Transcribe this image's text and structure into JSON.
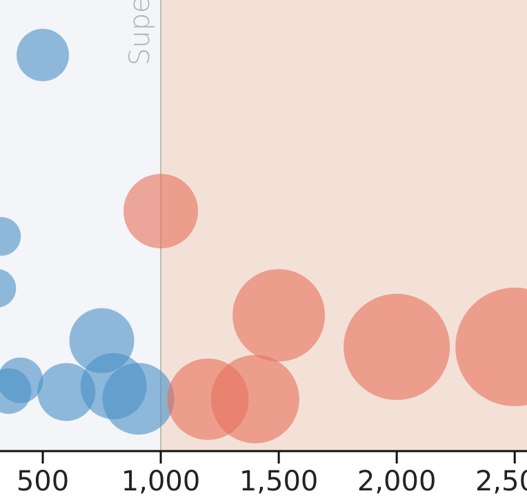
{
  "chart_data": {
    "type": "scatter",
    "xlim": [
      318.7,
      2552
    ],
    "ylim": [
      0,
      100
    ],
    "xticks": [
      500,
      {
        "value": 1000,
        "label": "1,000"
      },
      {
        "value": 1500,
        "label": "1,500"
      },
      {
        "value": 2000,
        "label": "2,000"
      },
      {
        "value": 2500,
        "label": "2,500"
      }
    ],
    "annotation": {
      "text": "Supe",
      "x": 1000
    },
    "series": [
      {
        "color": "#4a8fc6",
        "x": [
          500,
          325,
          305,
          405,
          355,
          600,
          750,
          800,
          905
        ],
        "values": [
          87.8,
          47.6,
          36.1,
          15.7,
          13.3,
          13.1,
          24.5,
          14.4,
          11.6
        ],
        "sizes": [
          38,
          28,
          28,
          33,
          33,
          42,
          47,
          48,
          52
        ]
      },
      {
        "color": "#e8705a",
        "x": [
          1000,
          1200,
          1400,
          1500,
          2000,
          2500
        ],
        "values": [
          53.2,
          11.5,
          11.5,
          30.1,
          23.1,
          23.1
        ],
        "sizes": [
          54,
          59,
          64,
          67,
          77,
          86
        ]
      }
    ]
  }
}
